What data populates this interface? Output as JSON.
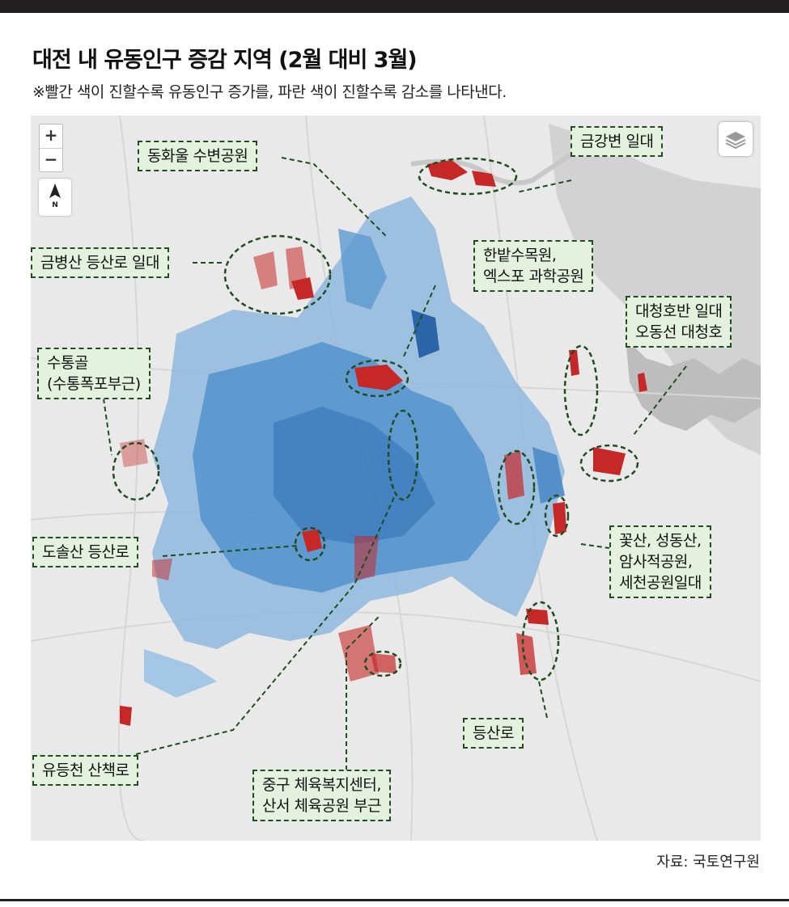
{
  "title": "대전 내 유동인구 증감 지역 (2월 대비 3월)",
  "subtitle": "※빨간 색이 진할수록 유동인구 증가를, 파란 색이 진할수록 감소를 나타낸다.",
  "map_controls": {
    "zoom_in": "+",
    "zoom_out": "−",
    "north": "N"
  },
  "labels": {
    "donghwaul": "동화울 수변공원",
    "geumgang": "금강변 일대",
    "geumbyeong": "금병산 등산로 일대",
    "hanbat_line1": "한밭수목원,",
    "hanbat_line2": "엑스포 과학공원",
    "daecheong_line1": "대청호반 일대",
    "daecheong_line2": "오동선 대청호",
    "sutong_line1": "수통골",
    "sutong_line2": "(수통폭포부근)",
    "dosol": "도솔산 등산로",
    "kkot_line1": "꽃산, 성동산,",
    "kkot_line2": "암사적공원,",
    "kkot_line3": "세천공원일대",
    "deungsan": "등산로",
    "yudeung": "유등천 산책로",
    "junggu_line1": "중구 체육복지센터,",
    "junggu_line2": "산서 체육공원 부근"
  },
  "colors": {
    "increase": "#c62828",
    "decrease": "#2f6fb5",
    "label_bg": "#e4f1de",
    "label_border": "#1f4d1f",
    "map_bg": "#e9e9e9"
  },
  "source": "자료: 국토연구원"
}
